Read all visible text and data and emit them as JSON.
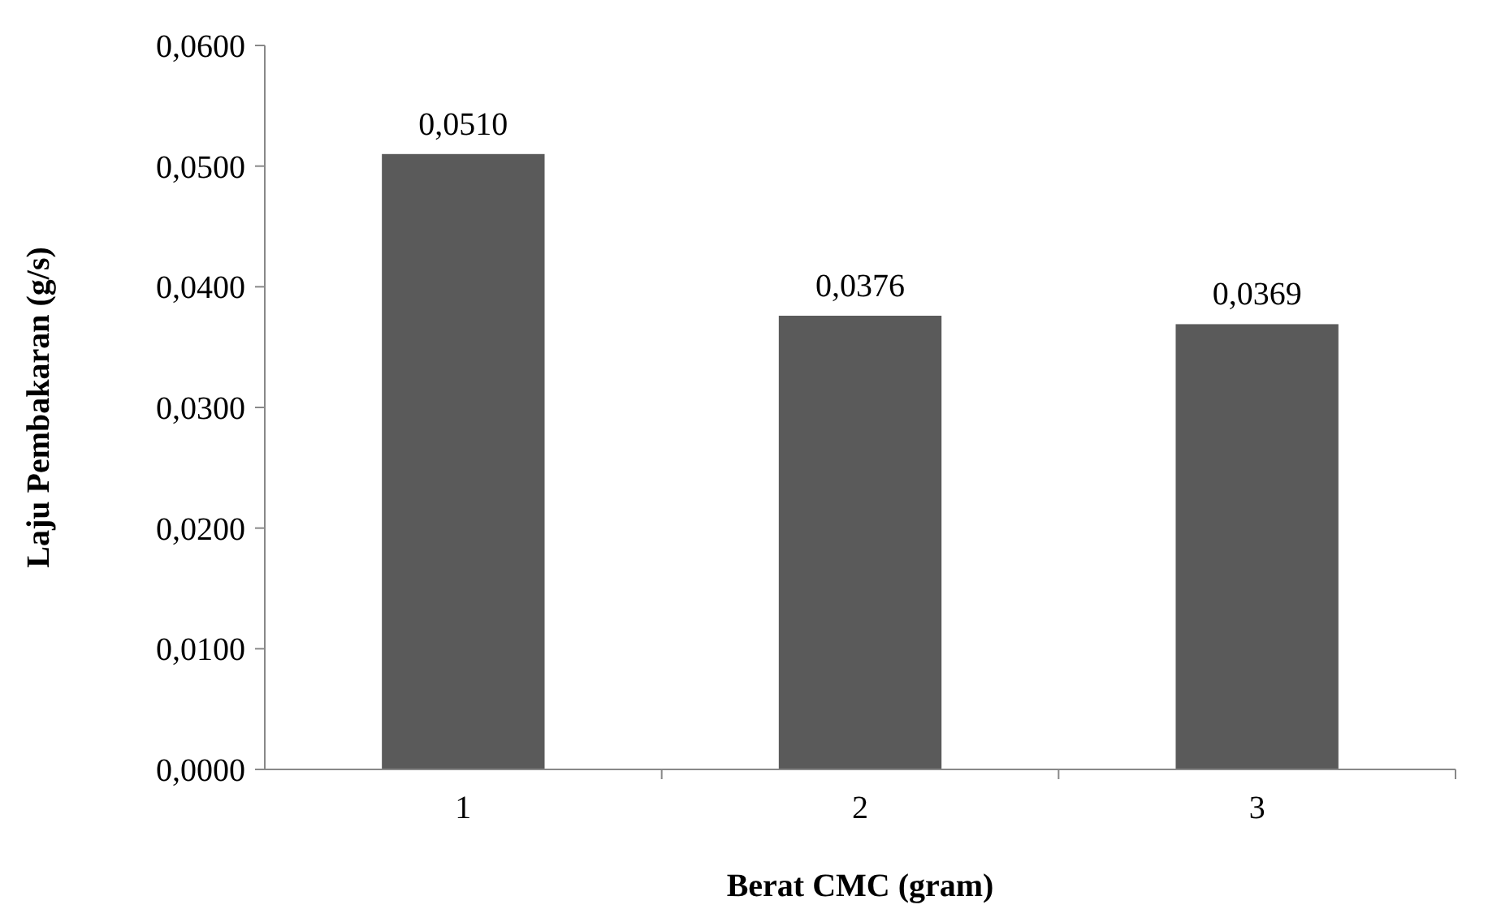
{
  "chart_data": {
    "type": "bar",
    "xlabel": "Berat CMC (gram)",
    "ylabel": "Laju Pembakaran (g/s)",
    "categories": [
      "1",
      "2",
      "3"
    ],
    "values": [
      0.051,
      0.0376,
      0.0369
    ],
    "value_labels": [
      "0,0510",
      "0,0376",
      "0,0369"
    ],
    "color": "#5a5a5a",
    "ylim": [
      0,
      0.06
    ],
    "yticks": [
      {
        "value": 0,
        "label": "0,0000"
      },
      {
        "value": 0.01,
        "label": "0,0100"
      },
      {
        "value": 0.02,
        "label": "0,0200"
      },
      {
        "value": 0.03,
        "label": "0,0300"
      },
      {
        "value": 0.04,
        "label": "0,0400"
      },
      {
        "value": 0.05,
        "label": "0,0500"
      },
      {
        "value": 0.06,
        "label": "0,0600"
      }
    ],
    "grid": false
  }
}
